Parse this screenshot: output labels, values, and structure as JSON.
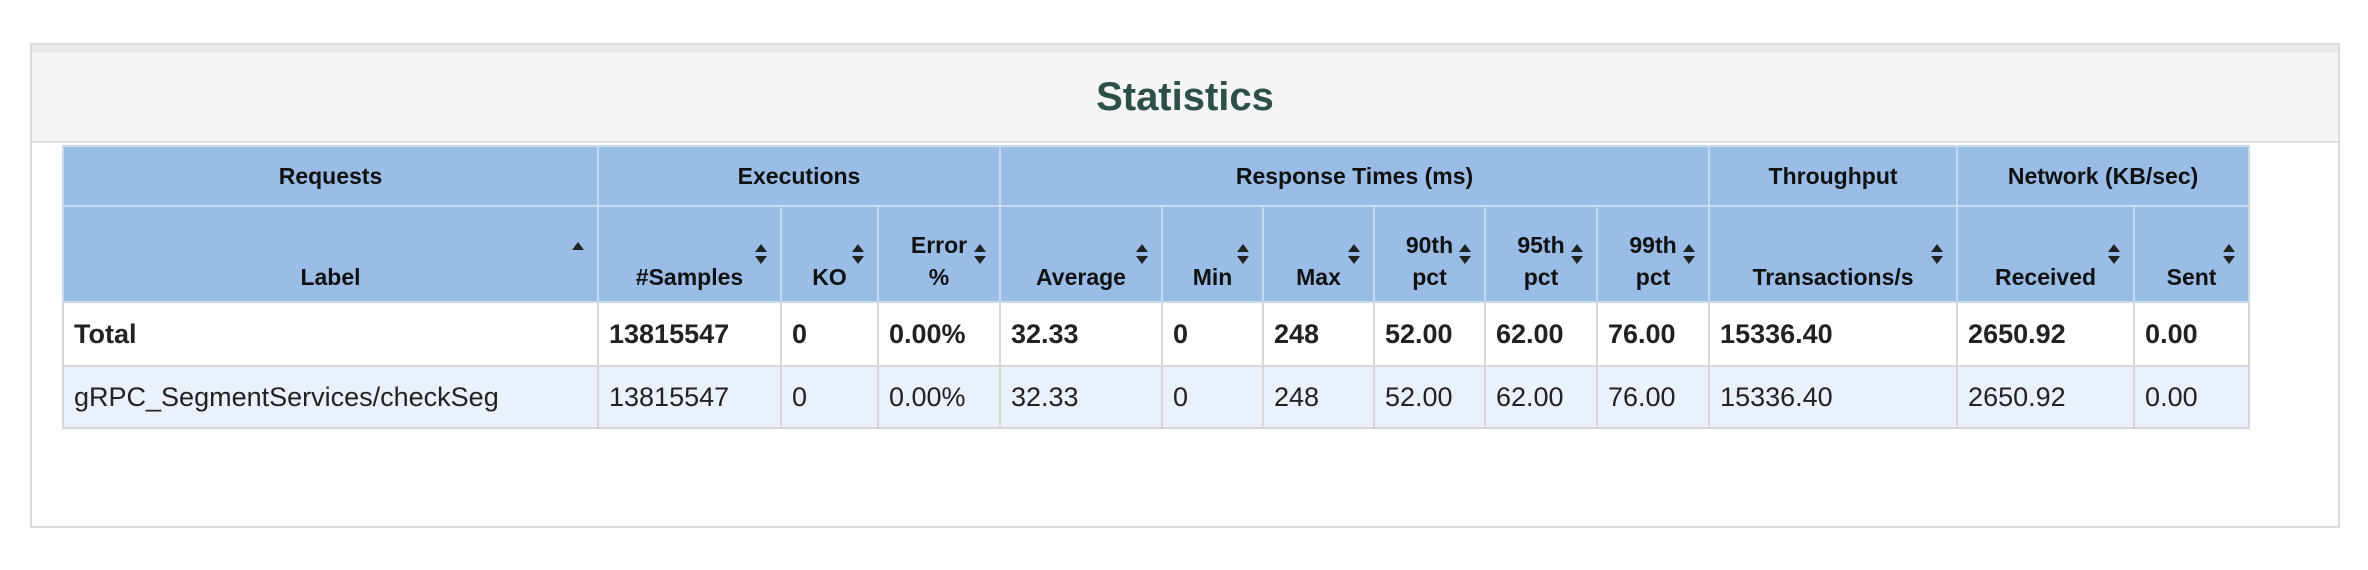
{
  "panel": {
    "title": "Statistics"
  },
  "table": {
    "groups": {
      "requests": "Requests",
      "executions": "Executions",
      "response_times": "Response Times (ms)",
      "throughput": "Throughput",
      "network": "Network (KB/sec)"
    },
    "columns": {
      "label": "Label",
      "samples": "#Samples",
      "ko": "KO",
      "error_line1": "Error",
      "error_line2": "%",
      "average": "Average",
      "min": "Min",
      "max": "Max",
      "p90_line1": "90th",
      "p90_line2": "pct",
      "p95_line1": "95th",
      "p95_line2": "pct",
      "p99_line1": "99th",
      "p99_line2": "pct",
      "transactions": "Transactions/s",
      "received": "Received",
      "sent": "Sent"
    },
    "total": {
      "label": "Total",
      "samples": "13815547",
      "ko": "0",
      "error": "0.00%",
      "average": "32.33",
      "min": "0",
      "max": "248",
      "p90": "52.00",
      "p95": "62.00",
      "p99": "76.00",
      "transactions": "15336.40",
      "received": "2650.92",
      "sent": "0.00"
    },
    "rows": [
      {
        "label": "gRPC_SegmentServices/checkSeg",
        "samples": "13815547",
        "ko": "0",
        "error": "0.00%",
        "average": "32.33",
        "min": "0",
        "max": "248",
        "p90": "52.00",
        "p95": "62.00",
        "p99": "76.00",
        "transactions": "15336.40",
        "received": "2650.92",
        "sent": "0.00"
      }
    ],
    "sort": {
      "column": "label",
      "direction": "ascending"
    }
  },
  "colors": {
    "header_bg": "#99bde6",
    "title": "#2c4f4a",
    "row_alt_bg": "#ebf1fa"
  }
}
